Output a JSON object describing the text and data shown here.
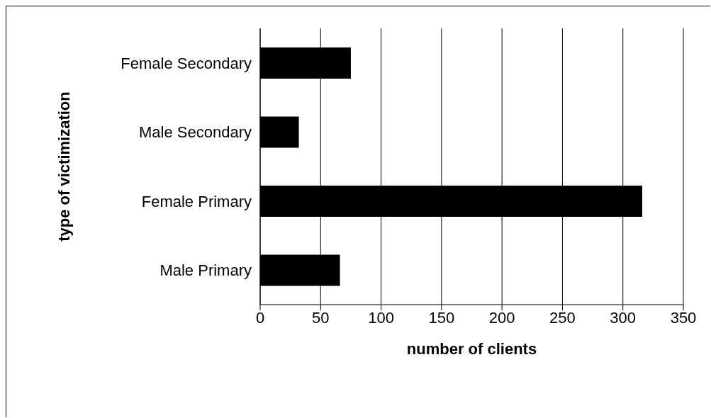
{
  "chart_data": {
    "type": "bar",
    "orientation": "horizontal",
    "categories": [
      "Female Secondary",
      "Male Secondary",
      "Female Primary",
      "Male Primary"
    ],
    "values": [
      75,
      32,
      316,
      66
    ],
    "color": "#000000",
    "xlabel": "number of clients",
    "ylabel": "type of victimization",
    "xlim": [
      0,
      350
    ],
    "xticks": [
      0,
      50,
      100,
      150,
      200,
      250,
      300,
      350
    ],
    "grid": "x"
  }
}
